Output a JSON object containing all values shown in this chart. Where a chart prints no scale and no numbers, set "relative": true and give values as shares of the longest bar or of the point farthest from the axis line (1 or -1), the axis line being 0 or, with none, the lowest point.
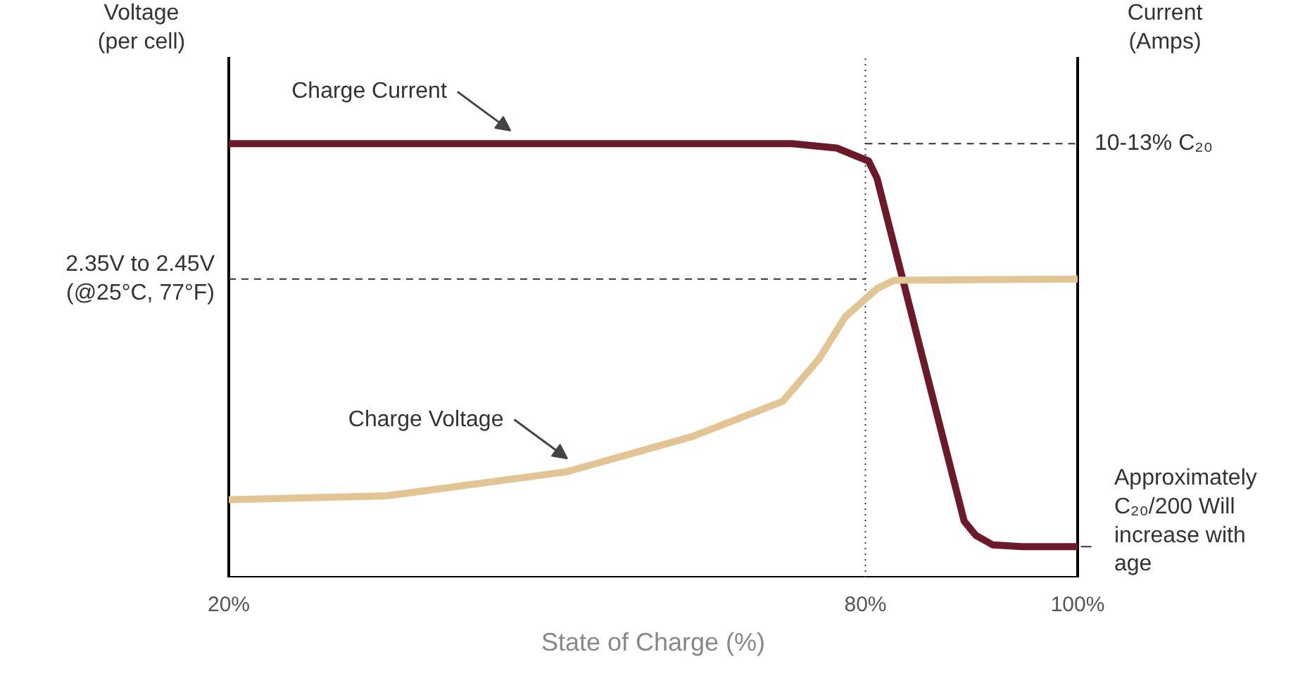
{
  "chart_data": {
    "type": "line",
    "relative": true,
    "xlabel": "State of Charge (%)",
    "ylabel": "Voltage (per cell)",
    "y2label": "Current (Amps)",
    "xlim": [
      20,
      100
    ],
    "xticks": [
      {
        "value": 20,
        "label": "20%"
      },
      {
        "value": 80,
        "label": "80%"
      },
      {
        "value": 100,
        "label": "100%"
      }
    ],
    "series": [
      {
        "name": "Charge Current",
        "color": "#6b1a2a",
        "x": [
          20,
          73.1,
          77.3,
          80.3,
          81.1,
          89.3,
          90.4,
          92.0,
          94.8,
          100
        ],
        "values": [
          1,
          1,
          0.99,
          0.96,
          0.92,
          0.13,
          0.097,
          0.075,
          0.071,
          0.071
        ]
      },
      {
        "name": "Charge Voltage",
        "color": "#e2c592",
        "x": [
          20,
          34.9,
          51.9,
          63.7,
          72.2,
          75.6,
          78.1,
          81.1,
          82.7,
          100
        ],
        "values": [
          0.179,
          0.188,
          0.244,
          0.325,
          0.406,
          0.503,
          0.601,
          0.666,
          0.685,
          0.688
        ]
      }
    ],
    "ref_lines": [
      {
        "axis": "x",
        "value": 80,
        "line_style": "dotted"
      },
      {
        "axis": "y",
        "value": 1,
        "label": "10-13% C₂₀",
        "line_style": "dashed"
      },
      {
        "axis": "y",
        "value": 0.688,
        "label": "2.35V to 2.45V (@25°C, 77°F)",
        "line_style": "dashed"
      }
    ],
    "annotations": [
      {
        "text": "Approximately C₂₀/200 Will increase with age",
        "x": 100,
        "y": 0.071
      }
    ],
    "grid": false,
    "legend": false,
    "line_style": "solid",
    "marker": "none"
  }
}
